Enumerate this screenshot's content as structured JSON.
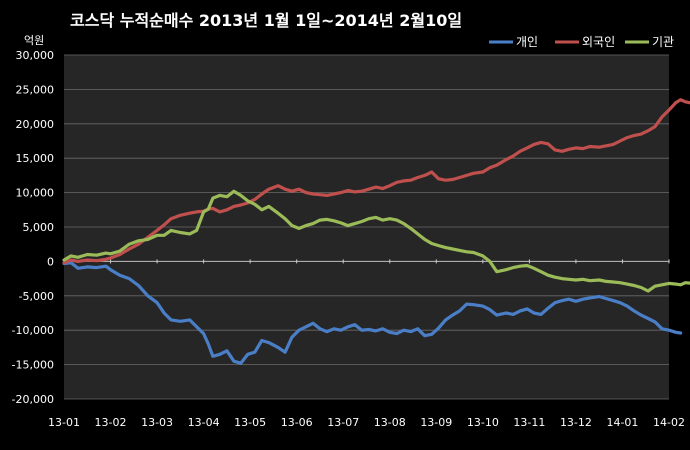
{
  "chart_data": {
    "type": "line",
    "title": "코스닥  누적순매수 2013년 1월 1일~2014년 2월10일",
    "ylabel": "억원",
    "ylim": [
      -20000,
      30000
    ],
    "yticks": [
      "30,000",
      "25,000",
      "20,000",
      "15,000",
      "10,000",
      "5,000",
      "0",
      "-5,000",
      "-10,000",
      "-15,000",
      "-20,000"
    ],
    "ytick_values": [
      30000,
      25000,
      20000,
      15000,
      10000,
      5000,
      0,
      -5000,
      -10000,
      -15000,
      -20000
    ],
    "xticks": [
      "13-01",
      "13-02",
      "13-03",
      "13-04",
      "13-05",
      "13-06",
      "13-07",
      "13-08",
      "13-09",
      "13-10",
      "13-11",
      "13-12",
      "14-01",
      "14-02"
    ],
    "grid": true,
    "legend_position": "top-right",
    "colors": {
      "background": "#000000",
      "plot_area": "#262626"
    },
    "series": [
      {
        "name": "개인",
        "color": "#4a7fc8",
        "points": [
          [
            0,
            -300
          ],
          [
            0.15,
            -200
          ],
          [
            0.3,
            -1000
          ],
          [
            0.5,
            -800
          ],
          [
            0.7,
            -900
          ],
          [
            0.9,
            -700
          ],
          [
            1.0,
            -1200
          ],
          [
            1.2,
            -2000
          ],
          [
            1.4,
            -2500
          ],
          [
            1.6,
            -3500
          ],
          [
            1.8,
            -5000
          ],
          [
            2.0,
            -6000
          ],
          [
            2.15,
            -7500
          ],
          [
            2.3,
            -8500
          ],
          [
            2.5,
            -8700
          ],
          [
            2.7,
            -8500
          ],
          [
            2.85,
            -9500
          ],
          [
            3.0,
            -10500
          ],
          [
            3.1,
            -12000
          ],
          [
            3.2,
            -13800
          ],
          [
            3.35,
            -13500
          ],
          [
            3.5,
            -13000
          ],
          [
            3.65,
            -14500
          ],
          [
            3.8,
            -14800
          ],
          [
            3.95,
            -13500
          ],
          [
            4.1,
            -13200
          ],
          [
            4.25,
            -11500
          ],
          [
            4.4,
            -11800
          ],
          [
            4.6,
            -12500
          ],
          [
            4.75,
            -13200
          ],
          [
            4.9,
            -11000
          ],
          [
            5.05,
            -10000
          ],
          [
            5.2,
            -9500
          ],
          [
            5.35,
            -9000
          ],
          [
            5.5,
            -9800
          ],
          [
            5.65,
            -10200
          ],
          [
            5.8,
            -9800
          ],
          [
            5.95,
            -10000
          ],
          [
            6.1,
            -9500
          ],
          [
            6.25,
            -9200
          ],
          [
            6.4,
            -10000
          ],
          [
            6.55,
            -9900
          ],
          [
            6.7,
            -10100
          ],
          [
            6.85,
            -9800
          ],
          [
            7.0,
            -10300
          ],
          [
            7.15,
            -10500
          ],
          [
            7.3,
            -10000
          ],
          [
            7.45,
            -10200
          ],
          [
            7.6,
            -9800
          ],
          [
            7.75,
            -10800
          ],
          [
            7.9,
            -10600
          ],
          [
            8.05,
            -9700
          ],
          [
            8.2,
            -8500
          ],
          [
            8.35,
            -7800
          ],
          [
            8.5,
            -7200
          ],
          [
            8.65,
            -6200
          ],
          [
            8.8,
            -6300
          ],
          [
            9.0,
            -6500
          ],
          [
            9.15,
            -7000
          ],
          [
            9.3,
            -7800
          ],
          [
            9.5,
            -7500
          ],
          [
            9.65,
            -7700
          ],
          [
            9.8,
            -7200
          ],
          [
            9.95,
            -6900
          ],
          [
            10.1,
            -7500
          ],
          [
            10.25,
            -7700
          ],
          [
            10.4,
            -6800
          ],
          [
            10.55,
            -6000
          ],
          [
            10.7,
            -5700
          ],
          [
            10.85,
            -5500
          ],
          [
            11.0,
            -5800
          ],
          [
            11.15,
            -5500
          ],
          [
            11.3,
            -5300
          ],
          [
            11.5,
            -5100
          ],
          [
            11.65,
            -5400
          ],
          [
            11.8,
            -5700
          ],
          [
            11.95,
            -6000
          ],
          [
            12.1,
            -6500
          ],
          [
            12.25,
            -7200
          ],
          [
            12.4,
            -7800
          ],
          [
            12.55,
            -8300
          ],
          [
            12.7,
            -8800
          ],
          [
            12.85,
            -9800
          ],
          [
            13.0,
            -10000
          ],
          [
            13.15,
            -10300
          ],
          [
            13.25,
            -10400
          ]
        ]
      },
      {
        "name": "외국인",
        "color": "#c0504d",
        "points": [
          [
            0,
            -200
          ],
          [
            0.15,
            200
          ],
          [
            0.3,
            0
          ],
          [
            0.5,
            200
          ],
          [
            0.7,
            100
          ],
          [
            0.9,
            300
          ],
          [
            1.0,
            500
          ],
          [
            1.2,
            1000
          ],
          [
            1.4,
            1800
          ],
          [
            1.6,
            2500
          ],
          [
            1.8,
            3500
          ],
          [
            2.0,
            4500
          ],
          [
            2.15,
            5300
          ],
          [
            2.3,
            6200
          ],
          [
            2.5,
            6700
          ],
          [
            2.7,
            7000
          ],
          [
            2.85,
            7200
          ],
          [
            3.0,
            7300
          ],
          [
            3.1,
            7600
          ],
          [
            3.2,
            7700
          ],
          [
            3.35,
            7200
          ],
          [
            3.5,
            7500
          ],
          [
            3.65,
            8000
          ],
          [
            3.8,
            8200
          ],
          [
            3.95,
            8500
          ],
          [
            4.1,
            9000
          ],
          [
            4.25,
            9800
          ],
          [
            4.4,
            10500
          ],
          [
            4.6,
            11000
          ],
          [
            4.75,
            10500
          ],
          [
            4.9,
            10200
          ],
          [
            5.05,
            10500
          ],
          [
            5.2,
            10000
          ],
          [
            5.35,
            9800
          ],
          [
            5.5,
            9700
          ],
          [
            5.65,
            9600
          ],
          [
            5.8,
            9800
          ],
          [
            5.95,
            10000
          ],
          [
            6.1,
            10300
          ],
          [
            6.25,
            10100
          ],
          [
            6.4,
            10200
          ],
          [
            6.55,
            10500
          ],
          [
            6.7,
            10800
          ],
          [
            6.85,
            10600
          ],
          [
            7.0,
            11000
          ],
          [
            7.15,
            11500
          ],
          [
            7.3,
            11700
          ],
          [
            7.45,
            11800
          ],
          [
            7.6,
            12200
          ],
          [
            7.75,
            12500
          ],
          [
            7.9,
            13000
          ],
          [
            8.05,
            12000
          ],
          [
            8.2,
            11800
          ],
          [
            8.35,
            11900
          ],
          [
            8.5,
            12200
          ],
          [
            8.65,
            12500
          ],
          [
            8.8,
            12800
          ],
          [
            9.0,
            13000
          ],
          [
            9.15,
            13600
          ],
          [
            9.3,
            14000
          ],
          [
            9.5,
            14800
          ],
          [
            9.65,
            15300
          ],
          [
            9.8,
            16000
          ],
          [
            9.95,
            16500
          ],
          [
            10.1,
            17000
          ],
          [
            10.25,
            17300
          ],
          [
            10.4,
            17100
          ],
          [
            10.55,
            16200
          ],
          [
            10.7,
            16000
          ],
          [
            10.85,
            16300
          ],
          [
            11.0,
            16500
          ],
          [
            11.15,
            16400
          ],
          [
            11.3,
            16700
          ],
          [
            11.5,
            16600
          ],
          [
            11.65,
            16800
          ],
          [
            11.8,
            17000
          ],
          [
            11.95,
            17500
          ],
          [
            12.1,
            18000
          ],
          [
            12.25,
            18300
          ],
          [
            12.4,
            18500
          ],
          [
            12.55,
            19000
          ],
          [
            12.7,
            19600
          ],
          [
            12.85,
            21000
          ],
          [
            13.0,
            22000
          ],
          [
            13.15,
            23100
          ],
          [
            13.25,
            23500
          ],
          [
            13.35,
            23200
          ],
          [
            13.5,
            23000
          ],
          [
            13.65,
            23300
          ],
          [
            13.8,
            23200
          ],
          [
            13.9,
            23700
          ]
        ]
      },
      {
        "name": "기관",
        "color": "#9bbb59",
        "points": [
          [
            0,
            200
          ],
          [
            0.15,
            800
          ],
          [
            0.3,
            600
          ],
          [
            0.5,
            1000
          ],
          [
            0.7,
            900
          ],
          [
            0.9,
            1200
          ],
          [
            1.0,
            1100
          ],
          [
            1.2,
            1500
          ],
          [
            1.4,
            2500
          ],
          [
            1.6,
            3000
          ],
          [
            1.8,
            3200
          ],
          [
            2.0,
            3800
          ],
          [
            2.15,
            3800
          ],
          [
            2.3,
            4500
          ],
          [
            2.5,
            4200
          ],
          [
            2.7,
            4000
          ],
          [
            2.85,
            4500
          ],
          [
            3.0,
            7200
          ],
          [
            3.1,
            7600
          ],
          [
            3.2,
            9200
          ],
          [
            3.35,
            9600
          ],
          [
            3.5,
            9400
          ],
          [
            3.65,
            10200
          ],
          [
            3.8,
            9600
          ],
          [
            3.95,
            8800
          ],
          [
            4.1,
            8300
          ],
          [
            4.25,
            7500
          ],
          [
            4.4,
            8000
          ],
          [
            4.6,
            7000
          ],
          [
            4.75,
            6200
          ],
          [
            4.9,
            5200
          ],
          [
            5.05,
            4800
          ],
          [
            5.2,
            5200
          ],
          [
            5.35,
            5500
          ],
          [
            5.5,
            6000
          ],
          [
            5.65,
            6100
          ],
          [
            5.8,
            5900
          ],
          [
            5.95,
            5600
          ],
          [
            6.1,
            5200
          ],
          [
            6.25,
            5500
          ],
          [
            6.4,
            5800
          ],
          [
            6.55,
            6200
          ],
          [
            6.7,
            6400
          ],
          [
            6.85,
            6000
          ],
          [
            7.0,
            6200
          ],
          [
            7.15,
            6000
          ],
          [
            7.3,
            5500
          ],
          [
            7.45,
            4800
          ],
          [
            7.6,
            4000
          ],
          [
            7.75,
            3200
          ],
          [
            7.9,
            2600
          ],
          [
            8.05,
            2300
          ],
          [
            8.2,
            2000
          ],
          [
            8.35,
            1800
          ],
          [
            8.5,
            1600
          ],
          [
            8.65,
            1400
          ],
          [
            8.8,
            1300
          ],
          [
            9.0,
            800
          ],
          [
            9.15,
            0
          ],
          [
            9.3,
            -1500
          ],
          [
            9.5,
            -1200
          ],
          [
            9.65,
            -900
          ],
          [
            9.8,
            -700
          ],
          [
            9.95,
            -600
          ],
          [
            10.1,
            -1000
          ],
          [
            10.25,
            -1500
          ],
          [
            10.4,
            -2000
          ],
          [
            10.55,
            -2300
          ],
          [
            10.7,
            -2500
          ],
          [
            10.85,
            -2600
          ],
          [
            11.0,
            -2700
          ],
          [
            11.15,
            -2600
          ],
          [
            11.3,
            -2800
          ],
          [
            11.5,
            -2700
          ],
          [
            11.65,
            -2900
          ],
          [
            11.8,
            -3000
          ],
          [
            11.95,
            -3100
          ],
          [
            12.1,
            -3300
          ],
          [
            12.25,
            -3500
          ],
          [
            12.4,
            -3800
          ],
          [
            12.55,
            -4300
          ],
          [
            12.7,
            -3600
          ],
          [
            12.85,
            -3400
          ],
          [
            13.0,
            -3200
          ],
          [
            13.15,
            -3300
          ],
          [
            13.25,
            -3400
          ],
          [
            13.35,
            -3100
          ],
          [
            13.5,
            -3200
          ],
          [
            13.65,
            -3000
          ],
          [
            13.8,
            -3300
          ],
          [
            13.9,
            -3200
          ]
        ]
      }
    ]
  }
}
